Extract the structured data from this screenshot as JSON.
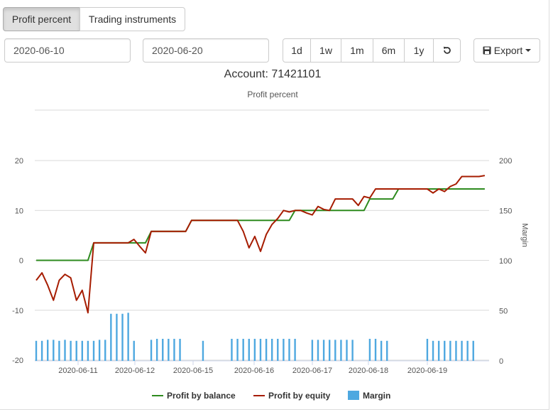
{
  "tabs": [
    {
      "label": "Profit percent",
      "active": true
    },
    {
      "label": "Trading instruments",
      "active": false
    }
  ],
  "date_from": "2020-06-10",
  "date_to": "2020-06-20",
  "ranges": [
    "1d",
    "1w",
    "1m",
    "6m",
    "1y"
  ],
  "reset_icon": "undo-icon",
  "export": {
    "label": "Export",
    "icon": "floppy-disk-icon"
  },
  "colors": {
    "balance": "#2e8b1f",
    "equity": "#a61c00",
    "margin": "#4ea8e0",
    "grid": "#d9d9d9"
  },
  "chart_data": {
    "type": "line",
    "title": "Account: 71421101",
    "subtitle": "Profit percent",
    "xlabel": "",
    "ylabel": "",
    "y2label": "Margin",
    "ylim": [
      -20,
      20
    ],
    "y2lim": [
      0,
      200
    ],
    "yticks": [
      -20,
      -10,
      0,
      10,
      20
    ],
    "y2ticks": [
      0,
      50,
      100,
      150,
      200
    ],
    "xticks": [
      "2020-06-11",
      "2020-06-12",
      "2020-06-15",
      "2020-06-16",
      "2020-06-17",
      "2020-06-18",
      "2020-06-19"
    ],
    "x": [
      0,
      2,
      4,
      6,
      8,
      10,
      12,
      14,
      16,
      18,
      20,
      22,
      24,
      26,
      28,
      30,
      32,
      34,
      36,
      38,
      40,
      42,
      44,
      46,
      48,
      50,
      52,
      54,
      56,
      58,
      60,
      62,
      64,
      66,
      68,
      70,
      72,
      74,
      76,
      78,
      80,
      82,
      84,
      86,
      88,
      90,
      92,
      94,
      96,
      98,
      100,
      102,
      104,
      106,
      108,
      110,
      112,
      114,
      116,
      118,
      120,
      122,
      124,
      126,
      128,
      130,
      132,
      134,
      136,
      138,
      140,
      142,
      144,
      146,
      148,
      150,
      152,
      154,
      156
    ],
    "series": [
      {
        "name": "Profit by balance",
        "axis": "left",
        "type": "line",
        "values": [
          0,
          0,
          0,
          0,
          0,
          0,
          0,
          0,
          0,
          0,
          3.5,
          3.5,
          3.5,
          3.5,
          3.5,
          3.5,
          3.5,
          3.5,
          3.5,
          3.5,
          5.8,
          5.8,
          5.8,
          5.8,
          5.8,
          5.8,
          5.8,
          8,
          8,
          8,
          8,
          8,
          8,
          8,
          8,
          8,
          8,
          8,
          8,
          8,
          8,
          8,
          8,
          8,
          8,
          10,
          10,
          10,
          10,
          10,
          10,
          10,
          10,
          10,
          10,
          10,
          10,
          10,
          12.3,
          12.3,
          12.3,
          12.3,
          12.3,
          14.3,
          14.3,
          14.3,
          14.3,
          14.3,
          14.3,
          14.3,
          14.3,
          14.3,
          14.3,
          14.3,
          14.3,
          14.3,
          14.3,
          14.3,
          14.3
        ]
      },
      {
        "name": "Profit by equity",
        "axis": "left",
        "type": "line",
        "values": [
          -4,
          -2.5,
          -5,
          -8,
          -4,
          -2.8,
          -3.5,
          -8,
          -6,
          -10.5,
          3.5,
          3.5,
          3.5,
          3.5,
          3.5,
          3.5,
          3.5,
          4.2,
          2.8,
          1.5,
          5.8,
          5.8,
          5.8,
          5.8,
          5.8,
          5.8,
          5.8,
          8,
          8,
          8,
          8,
          8,
          8,
          8,
          8,
          8,
          5.8,
          2.5,
          4.8,
          1.8,
          5.2,
          7.2,
          8.4,
          10,
          9.7,
          10,
          10,
          9.5,
          9.1,
          10.8,
          10.2,
          10,
          12.3,
          12.3,
          12.3,
          12.3,
          11,
          12.8,
          12.5,
          14.3,
          14.3,
          14.3,
          14.3,
          14.3,
          14.3,
          14.3,
          14.3,
          14.3,
          14.3,
          13.5,
          14.3,
          13.8,
          14.8,
          15.3,
          16.8,
          16.8,
          16.8,
          16.8,
          17
        ]
      },
      {
        "name": "Margin",
        "axis": "right",
        "type": "bar",
        "values": [
          20,
          20,
          21,
          21,
          20,
          21,
          20,
          20,
          20,
          20,
          20,
          21,
          21,
          47,
          47,
          47,
          48,
          20,
          0,
          0,
          21,
          22,
          22,
          22,
          22,
          22,
          0,
          0,
          0,
          20,
          0,
          0,
          0,
          0,
          22,
          22,
          22,
          22,
          22,
          22,
          22,
          22,
          22,
          22,
          22,
          22,
          0,
          0,
          21,
          21,
          21,
          21,
          21,
          21,
          21,
          21,
          0,
          0,
          22,
          22,
          20,
          20,
          0,
          0,
          0,
          0,
          0,
          0,
          22,
          20,
          20,
          20,
          20,
          20,
          20,
          20,
          20,
          0,
          0
        ]
      }
    ],
    "legend": "bottom-center",
    "grid": true
  }
}
